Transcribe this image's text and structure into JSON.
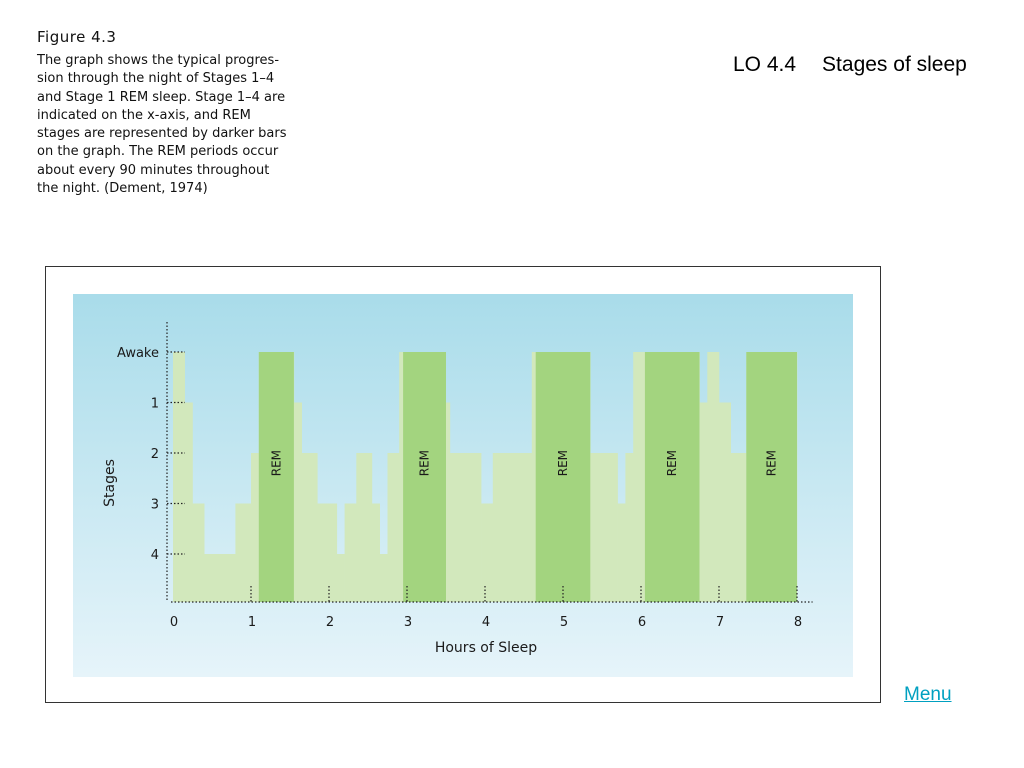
{
  "figure": {
    "label": "Figure 4.3",
    "caption_lines": [
      "The graph shows the typical progres-",
      "sion through the night of Stages 1–4",
      "and Stage 1 REM sleep. Stage 1–4 are",
      "indicated on the x-axis, and REM",
      "stages are represented by darker bars",
      "on the graph. The REM periods occur",
      "about every 90 minutes throughout",
      "the night. (Dement, 1974)"
    ]
  },
  "slide": {
    "code": "LO 4.4",
    "title": "Stages of sleep"
  },
  "menu_label": "Menu",
  "colors": {
    "panel_top": "#a9dcea",
    "panel_bottom": "#e6f4fa",
    "light_bar": "#d2e8bc",
    "rem_bar": "#a3d47f",
    "axis": "#222222"
  },
  "chart_data": {
    "type": "area",
    "xlabel": "Hours of Sleep",
    "ylabel": "Stages",
    "x_ticks": [
      0,
      1,
      2,
      3,
      4,
      5,
      6,
      7,
      8
    ],
    "y_ticks": [
      {
        "value": 0,
        "label": "Awake"
      },
      {
        "value": 1,
        "label": "1"
      },
      {
        "value": 2,
        "label": "2"
      },
      {
        "value": 3,
        "label": "3"
      },
      {
        "value": 4,
        "label": "4"
      }
    ],
    "xlim": [
      0,
      8.2
    ],
    "ylim": [
      0,
      5
    ],
    "stage_steps": [
      {
        "start": 0,
        "end": 0.15,
        "stage": 0
      },
      {
        "start": 0.15,
        "end": 0.25,
        "stage": 1
      },
      {
        "start": 0.25,
        "end": 0.4,
        "stage": 3
      },
      {
        "start": 0.4,
        "end": 0.8,
        "stage": 4
      },
      {
        "start": 0.8,
        "end": 1.0,
        "stage": 3
      },
      {
        "start": 1.0,
        "end": 1.1,
        "stage": 2
      },
      {
        "start": 1.1,
        "end": 1.55,
        "stage": 0
      },
      {
        "start": 1.55,
        "end": 1.65,
        "stage": 1
      },
      {
        "start": 1.65,
        "end": 1.85,
        "stage": 2
      },
      {
        "start": 1.85,
        "end": 2.1,
        "stage": 3
      },
      {
        "start": 2.1,
        "end": 2.2,
        "stage": 4
      },
      {
        "start": 2.2,
        "end": 2.35,
        "stage": 3
      },
      {
        "start": 2.35,
        "end": 2.55,
        "stage": 2
      },
      {
        "start": 2.55,
        "end": 2.65,
        "stage": 3
      },
      {
        "start": 2.65,
        "end": 2.75,
        "stage": 4
      },
      {
        "start": 2.75,
        "end": 2.9,
        "stage": 2
      },
      {
        "start": 2.9,
        "end": 3.45,
        "stage": 0
      },
      {
        "start": 3.45,
        "end": 3.55,
        "stage": 1
      },
      {
        "start": 3.55,
        "end": 3.95,
        "stage": 2
      },
      {
        "start": 3.95,
        "end": 4.1,
        "stage": 3
      },
      {
        "start": 4.1,
        "end": 4.6,
        "stage": 2
      },
      {
        "start": 4.6,
        "end": 5.35,
        "stage": 0
      },
      {
        "start": 5.35,
        "end": 5.7,
        "stage": 2
      },
      {
        "start": 5.7,
        "end": 5.8,
        "stage": 3
      },
      {
        "start": 5.8,
        "end": 5.9,
        "stage": 2
      },
      {
        "start": 5.9,
        "end": 6.75,
        "stage": 0
      },
      {
        "start": 6.75,
        "end": 6.85,
        "stage": 1
      },
      {
        "start": 6.85,
        "end": 7.0,
        "stage": 0
      },
      {
        "start": 7.0,
        "end": 7.15,
        "stage": 1
      },
      {
        "start": 7.15,
        "end": 7.35,
        "stage": 2
      },
      {
        "start": 7.35,
        "end": 8.0,
        "stage": 0
      }
    ],
    "rem_periods": [
      {
        "start": 1.1,
        "end": 1.55,
        "label": "REM"
      },
      {
        "start": 2.95,
        "end": 3.5,
        "label": "REM"
      },
      {
        "start": 4.65,
        "end": 5.35,
        "label": "REM"
      },
      {
        "start": 6.05,
        "end": 6.75,
        "label": "REM"
      },
      {
        "start": 7.35,
        "end": 8.0,
        "label": "REM"
      }
    ]
  }
}
